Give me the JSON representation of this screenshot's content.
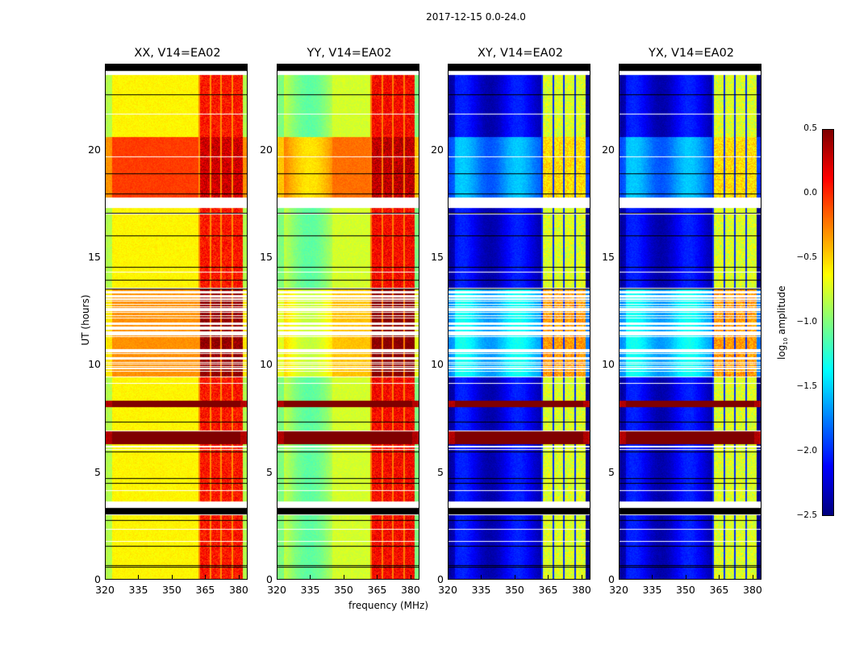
{
  "chart_data": {
    "type": "heatmap",
    "title": "2017-12-15 0.0-24.0",
    "xlabel": "frequency (MHz)",
    "ylabel": "UT (hours)",
    "xlim": [
      320,
      384
    ],
    "ylim": [
      0,
      24
    ],
    "xticks": [
      320,
      335,
      350,
      365,
      380
    ],
    "yticks": [
      0,
      5,
      10,
      15,
      20
    ],
    "colormap": "jet",
    "colorbar": {
      "label": "log10 amplitude",
      "label_main": "log",
      "label_sub": "10",
      "label_tail": " amplitude",
      "range": [
        -2.5,
        0.5
      ],
      "ticks": [
        0.5,
        0.0,
        -0.5,
        -1.0,
        -1.5,
        -2.0,
        -2.5
      ],
      "tick_labels": [
        "0.5",
        "0.0",
        "−0.5",
        "−1.0",
        "−1.5",
        "−2.0",
        "−2.5"
      ]
    },
    "panels": [
      {
        "name": "XX",
        "title": "XX, V14=EA02",
        "base_level": -0.6,
        "rfi_level": 0.0
      },
      {
        "name": "YY",
        "title": "YY, V14=EA02",
        "base_level": -0.75,
        "rfi_level": 0.05
      },
      {
        "name": "XY",
        "title": "XY, V14=EA02",
        "base_level": -2.2,
        "rfi_level": -0.8
      },
      {
        "name": "YX",
        "title": "YX, V14=EA02",
        "base_level": -2.2,
        "rfi_level": -0.8
      }
    ],
    "time_segments_hours": [
      {
        "start": 0.0,
        "end": 3.0,
        "state": "quiet"
      },
      {
        "start": 3.0,
        "end": 3.3,
        "state": "flagged-black"
      },
      {
        "start": 3.3,
        "end": 3.6,
        "state": "gap"
      },
      {
        "start": 3.6,
        "end": 6.3,
        "state": "quiet"
      },
      {
        "start": 6.3,
        "end": 6.9,
        "state": "saturated"
      },
      {
        "start": 6.9,
        "end": 8.0,
        "state": "quiet"
      },
      {
        "start": 8.0,
        "end": 8.3,
        "state": "saturated"
      },
      {
        "start": 8.3,
        "end": 9.4,
        "state": "quiet"
      },
      {
        "start": 9.4,
        "end": 13.5,
        "state": "striped"
      },
      {
        "start": 13.5,
        "end": 17.3,
        "state": "quiet"
      },
      {
        "start": 17.3,
        "end": 17.8,
        "state": "gap"
      },
      {
        "start": 17.8,
        "end": 20.6,
        "state": "elevated"
      },
      {
        "start": 20.6,
        "end": 23.5,
        "state": "quiet"
      },
      {
        "start": 23.5,
        "end": 23.7,
        "state": "gap"
      },
      {
        "start": 23.7,
        "end": 24.0,
        "state": "flagged-black"
      }
    ],
    "rfi_band_MHz": [
      362,
      382
    ]
  }
}
